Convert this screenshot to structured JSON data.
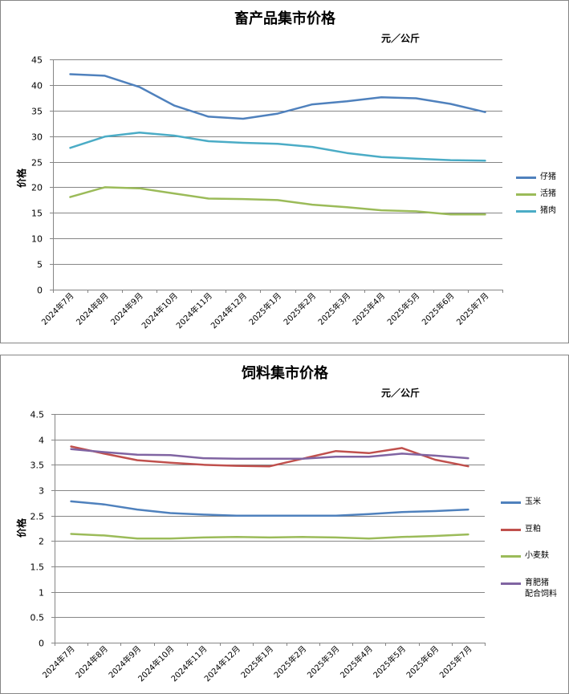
{
  "chart_data": [
    {
      "type": "line",
      "title": "畜产品集市价格",
      "unit": "元／公斤",
      "ylabel": "价格",
      "ylim": [
        0,
        45
      ],
      "yticks": [
        "0",
        "5",
        "10",
        "15",
        "20",
        "25",
        "30",
        "35",
        "40",
        "45"
      ],
      "grid": true,
      "legend": "right",
      "categories": [
        "2024年7月",
        "2024年8月",
        "2024年9月",
        "2024年10月",
        "2024年11月",
        "2024年12月",
        "2025年1月",
        "2025年2月",
        "2025年3月",
        "2025年4月",
        "2025年5月",
        "2025年6月",
        "2025年7月"
      ],
      "series": [
        {
          "name": "仔猪",
          "color": "#4F81BD",
          "values": [
            42.1,
            41.8,
            39.6,
            36.0,
            33.8,
            33.4,
            34.4,
            36.2,
            36.8,
            37.6,
            37.4,
            36.3,
            34.7
          ]
        },
        {
          "name": "活猪",
          "color": "#9BBB59",
          "values": [
            18.1,
            20.0,
            19.8,
            18.8,
            17.8,
            17.7,
            17.5,
            16.6,
            16.1,
            15.5,
            15.3,
            14.7,
            14.7
          ]
        },
        {
          "name": "猪肉",
          "color": "#4BACC6",
          "values": [
            27.7,
            29.9,
            30.7,
            30.1,
            29.0,
            28.7,
            28.5,
            27.9,
            26.7,
            25.9,
            25.6,
            25.3,
            25.2
          ]
        }
      ]
    },
    {
      "type": "line",
      "title": "饲料集市价格",
      "unit": "元／公斤",
      "ylabel": "价格",
      "ylim": [
        0,
        4.5
      ],
      "yticks": [
        "0",
        "0.5",
        "1",
        "1.5",
        "2",
        "2.5",
        "3",
        "3.5",
        "4",
        "4.5"
      ],
      "grid": true,
      "legend": "right",
      "categories": [
        "2024年7月",
        "2024年8月",
        "2024年9月",
        "2024年10月",
        "2024年11月",
        "2024年12月",
        "2025年1月",
        "2025年2月",
        "2025年3月",
        "2025年4月",
        "2025年5月",
        "2025年6月",
        "2025年7月"
      ],
      "series": [
        {
          "name": "玉米",
          "color": "#4F81BD",
          "values": [
            2.78,
            2.72,
            2.62,
            2.55,
            2.52,
            2.5,
            2.5,
            2.5,
            2.5,
            2.53,
            2.57,
            2.59,
            2.62
          ]
        },
        {
          "name": "豆粕",
          "color": "#C0504D",
          "values": [
            3.86,
            3.72,
            3.59,
            3.54,
            3.5,
            3.48,
            3.47,
            3.62,
            3.77,
            3.73,
            3.83,
            3.6,
            3.47
          ]
        },
        {
          "name": "小麦麸",
          "color": "#9BBB59",
          "values": [
            2.14,
            2.11,
            2.05,
            2.05,
            2.07,
            2.08,
            2.07,
            2.08,
            2.07,
            2.05,
            2.08,
            2.1,
            2.13
          ]
        },
        {
          "name": "育肥猪\n配合饲料",
          "color": "#8064A2",
          "values": [
            3.81,
            3.75,
            3.7,
            3.69,
            3.63,
            3.62,
            3.62,
            3.62,
            3.66,
            3.66,
            3.72,
            3.68,
            3.63
          ]
        }
      ]
    }
  ]
}
